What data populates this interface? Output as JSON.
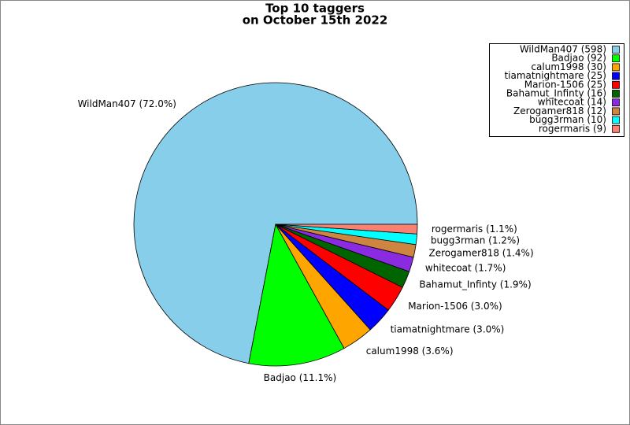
{
  "chart_data": {
    "type": "pie",
    "title": [
      "Top 10 taggers",
      "on October 15th 2022"
    ],
    "categories": [
      "WildMan407",
      "Badjao",
      "calum1998",
      "tiamatnightmare",
      "Marion-1506",
      "Bahamut_Infinty",
      "whitecoat",
      "Zerogamer818",
      "bugg3rman",
      "rogermaris"
    ],
    "values": [
      598,
      92,
      30,
      25,
      25,
      16,
      14,
      12,
      10,
      9
    ],
    "slice_labels": [
      "WildMan407 (72.0%)",
      "Badjao (11.1%)",
      "calum1998 (3.6%)",
      "tiamatnightmare (3.0%)",
      "Marion-1506 (3.0%)",
      "Bahamut_Infinty (1.9%)",
      "whitecoat (1.7%)",
      "Zerogamer818 (1.4%)",
      "bugg3rman (1.2%)",
      "rogermaris (1.1%)"
    ],
    "legend_labels": [
      "WildMan407 (598)",
      "Badjao (92)",
      "calum1998 (30)",
      "tiamatnightmare (25)",
      "Marion-1506 (25)",
      "Bahamut_Infinty (16)",
      "whitecoat (14)",
      "Zerogamer818 (12)",
      "bugg3rman (10)",
      "rogermaris (9)"
    ],
    "colors": [
      "#87ceeb",
      "#00ff00",
      "#ffa500",
      "#0000ff",
      "#ff0000",
      "#006400",
      "#8a2be2",
      "#cd853f",
      "#00ffff",
      "#fa8072"
    ],
    "legend": "upper right"
  }
}
